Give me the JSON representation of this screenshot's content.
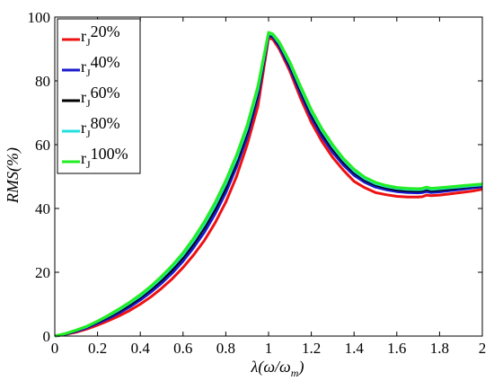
{
  "chart_data": {
    "type": "line",
    "xlabel_main": "λ(ω/ω",
    "xlabel_sub": "m",
    "xlabel_close": ")",
    "ylabel": "RMS(%)",
    "xlim": [
      0,
      2
    ],
    "ylim": [
      0,
      100
    ],
    "xticks": [
      "0",
      "0.2",
      "0.4",
      "0.6",
      "0.8",
      "1",
      "1.2",
      "1.4",
      "1.6",
      "1.8",
      "2"
    ],
    "yticks": [
      "0",
      "20",
      "40",
      "60",
      "80",
      "100"
    ],
    "grid": false,
    "legend_position": "top-left",
    "x": [
      0,
      0.05,
      0.1,
      0.15,
      0.2,
      0.25,
      0.3,
      0.35,
      0.4,
      0.45,
      0.5,
      0.55,
      0.6,
      0.65,
      0.7,
      0.75,
      0.8,
      0.85,
      0.9,
      0.95,
      1.0,
      1.02,
      1.05,
      1.1,
      1.15,
      1.2,
      1.25,
      1.3,
      1.35,
      1.4,
      1.45,
      1.5,
      1.55,
      1.6,
      1.65,
      1.7,
      1.72,
      1.74,
      1.76,
      1.8,
      1.85,
      1.9,
      1.95,
      2.0
    ],
    "series": [
      {
        "name_main": "r",
        "name_sub": "J",
        "name_tail": "20%",
        "color": "#ee1111",
        "values": [
          0,
          0.5,
          1.2,
          2.2,
          3.4,
          4.8,
          6.3,
          8.0,
          10.0,
          12.3,
          15.0,
          18.0,
          21.5,
          25.5,
          30.0,
          35.5,
          42.0,
          50.0,
          60.0,
          72.0,
          93.5,
          93.0,
          90.0,
          83.0,
          74.5,
          67.0,
          61.0,
          56.0,
          52.0,
          48.5,
          46.5,
          45.0,
          44.3,
          43.8,
          43.6,
          43.6,
          43.7,
          44.2,
          44.0,
          44.2,
          44.6,
          45.0,
          45.4,
          46.0
        ]
      },
      {
        "name_main": "r",
        "name_sub": "J",
        "name_tail": "40%",
        "color": "#1a1acc",
        "values": [
          0,
          0.6,
          1.5,
          2.6,
          4.0,
          5.5,
          7.2,
          9.1,
          11.3,
          13.8,
          16.6,
          19.8,
          23.5,
          27.8,
          32.6,
          38.3,
          45.0,
          53.0,
          62.5,
          75.0,
          94.2,
          93.7,
          90.8,
          84.0,
          76.0,
          68.5,
          62.5,
          57.6,
          53.6,
          50.4,
          48.2,
          46.7,
          45.9,
          45.3,
          45.0,
          44.9,
          45.0,
          45.3,
          45.0,
          45.2,
          45.6,
          46.0,
          46.4,
          46.8
        ]
      },
      {
        "name_main": "r",
        "name_sub": "J",
        "name_tail": "60%",
        "color": "#000000",
        "values": [
          0,
          0.7,
          1.7,
          2.9,
          4.4,
          6.0,
          7.8,
          9.8,
          12.1,
          14.7,
          17.6,
          20.9,
          24.7,
          29.1,
          34.1,
          39.9,
          46.6,
          54.6,
          64.0,
          76.3,
          94.6,
          94.1,
          91.4,
          84.8,
          77.0,
          69.6,
          63.6,
          58.7,
          54.6,
          51.3,
          49.0,
          47.4,
          46.5,
          45.9,
          45.6,
          45.5,
          45.6,
          46.0,
          45.6,
          45.8,
          46.1,
          46.5,
          46.9,
          47.2
        ]
      },
      {
        "name_main": "r",
        "name_sub": "J",
        "name_tail": "80%",
        "color": "#22e0e0",
        "values": [
          0,
          0.75,
          1.8,
          3.0,
          4.6,
          6.3,
          8.2,
          10.3,
          12.6,
          15.3,
          18.3,
          21.7,
          25.5,
          30.0,
          35.1,
          41.0,
          47.8,
          55.7,
          65.1,
          77.3,
          94.9,
          94.4,
          91.8,
          85.4,
          77.7,
          70.4,
          64.4,
          59.4,
          55.2,
          51.8,
          49.4,
          47.8,
          46.9,
          46.3,
          46.0,
          45.9,
          46.0,
          46.4,
          46.0,
          46.2,
          46.5,
          46.8,
          47.1,
          47.4
        ]
      },
      {
        "name_main": "r",
        "name_sub": "J",
        "name_tail": "100%",
        "color": "#22ee22",
        "values": [
          0,
          0.8,
          1.9,
          3.1,
          4.7,
          6.5,
          8.5,
          10.6,
          13.0,
          15.7,
          18.8,
          22.2,
          26.1,
          30.7,
          35.9,
          41.9,
          48.8,
          56.7,
          66.1,
          78.3,
          95.2,
          94.7,
          92.2,
          85.9,
          78.3,
          71.0,
          65.0,
          60.0,
          55.7,
          52.3,
          49.8,
          48.2,
          47.2,
          46.6,
          46.3,
          46.2,
          46.3,
          46.7,
          46.3,
          46.5,
          46.8,
          47.1,
          47.4,
          47.7
        ]
      }
    ]
  }
}
